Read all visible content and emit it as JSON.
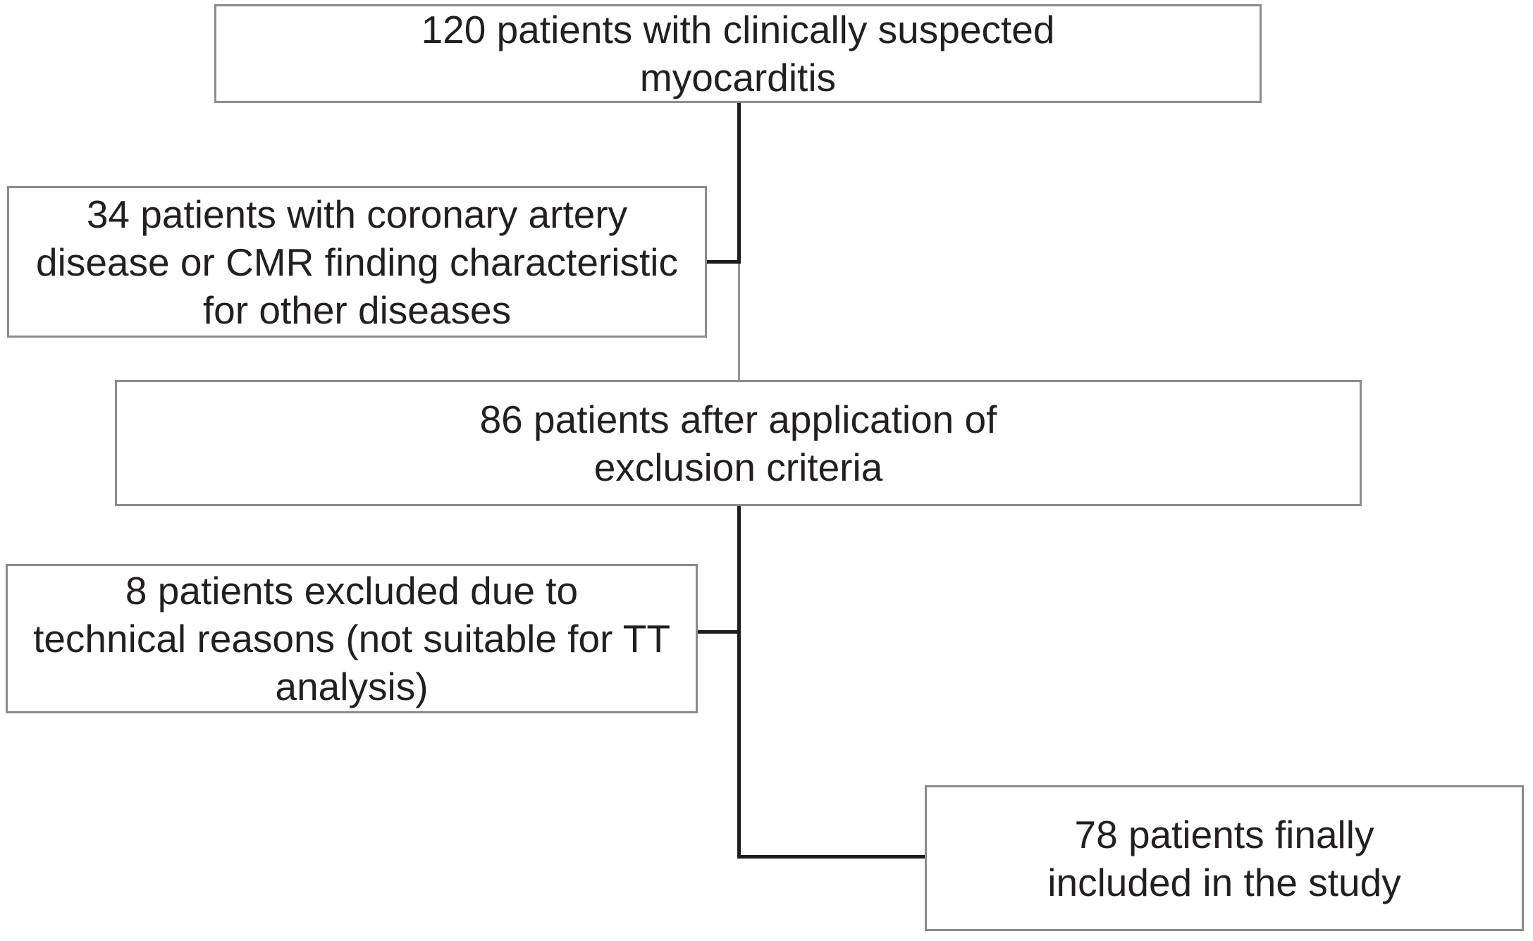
{
  "figure": {
    "type": "flow-diagram",
    "background": "#ffffff",
    "text_color": "#231f20",
    "box_border_color": "#8b8b8b",
    "connector_color": "#1d1d1d",
    "nodes": [
      {
        "id": "suspected",
        "count": 120,
        "text": "120 patients with clinically suspected\nmyocarditis"
      },
      {
        "id": "excluded-cad",
        "count": 34,
        "text": "34 patients with coronary artery\ndisease or CMR finding characteristic\nfor other diseases"
      },
      {
        "id": "after-exclusion",
        "count": 86,
        "text": "86 patients after application of\nexclusion criteria"
      },
      {
        "id": "excluded-technical",
        "count": 8,
        "text": "8 patients excluded due to\ntechnical reasons (not suitable for TT\nanalysis)"
      },
      {
        "id": "included",
        "count": 78,
        "text": "78 patients finally\nincluded in the study"
      }
    ]
  }
}
